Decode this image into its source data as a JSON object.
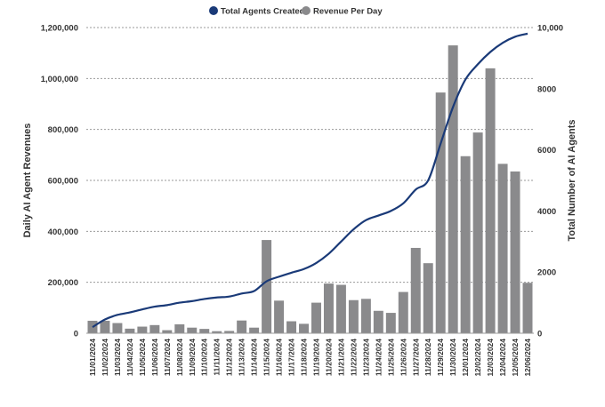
{
  "chart_data": {
    "type": "bar+line",
    "legend": {
      "placement": "top-center",
      "items": [
        "Total Agents Created",
        "Revenue Per Day"
      ]
    },
    "categories": [
      "11/01/2024",
      "11/02/2024",
      "11/03/2024",
      "11/04/2024",
      "11/05/2024",
      "11/06/2024",
      "11/07/2024",
      "11/08/2024",
      "11/09/2024",
      "11/10/2024",
      "11/11/2024",
      "11/12/2024",
      "11/13/2024",
      "11/14/2024",
      "11/15/2024",
      "11/16/2024",
      "11/17/2024",
      "11/18/2024",
      "11/19/2024",
      "11/20/2024",
      "11/21/2024",
      "11/22/2024",
      "11/23/2024",
      "11/24/2024",
      "11/25/2024",
      "11/26/2024",
      "11/27/2024",
      "11/28/2024",
      "11/29/2024",
      "11/30/2024",
      "12/01/2024",
      "12/02/2024",
      "12/03/2024",
      "12/04/2024",
      "12/05/2024",
      "12/06/2024"
    ],
    "series": [
      {
        "name": "Revenue Per Day",
        "type": "bar",
        "axis": "left",
        "color": "#8a8a8c",
        "values": [
          49000,
          49000,
          40000,
          18000,
          26000,
          32000,
          12000,
          35000,
          22000,
          17000,
          8000,
          9000,
          50000,
          22000,
          366000,
          128000,
          47000,
          37000,
          120000,
          195000,
          190000,
          130000,
          135000,
          88000,
          80000,
          162000,
          335000,
          275000,
          945000,
          1130000,
          695000,
          788000,
          1040000,
          665000,
          635000,
          198000
        ]
      },
      {
        "name": "Total Agents Created",
        "type": "line",
        "axis": "right",
        "color": "#1a3a78",
        "values": [
          200,
          450,
          600,
          680,
          780,
          870,
          920,
          1000,
          1050,
          1120,
          1170,
          1200,
          1300,
          1380,
          1700,
          1850,
          1980,
          2100,
          2300,
          2600,
          3000,
          3400,
          3700,
          3850,
          4000,
          4250,
          4700,
          5000,
          6200,
          7400,
          8300,
          8800,
          9200,
          9500,
          9700,
          9800
        ]
      }
    ],
    "ylabel": "Daily AI Agent Revenues",
    "ylim": [
      0,
      1200000
    ],
    "yticks": [
      "0",
      "200,000",
      "400,000",
      "600,000",
      "800,000",
      "1,000,000",
      "1,200,000"
    ],
    "y2label": "Total Number of AI Agents",
    "y2lim": [
      0,
      10000
    ],
    "y2ticks": [
      "0",
      "2000",
      "4000",
      "6000",
      "8000",
      "10,000"
    ],
    "grid": "horizontal dotted"
  }
}
